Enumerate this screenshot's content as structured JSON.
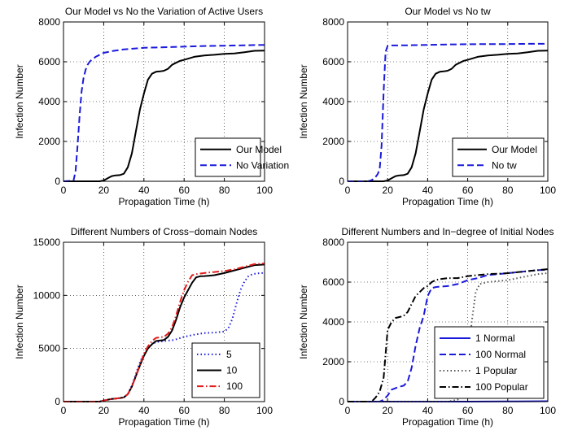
{
  "chart_data": [
    {
      "type": "line",
      "title": "Our Model vs No the Variation of Active Users",
      "xlabel": "Propagation Time (h)",
      "ylabel": "Infection Number",
      "xlim": [
        0,
        100
      ],
      "ylim": [
        0,
        8000
      ],
      "xticks": [
        0,
        20,
        40,
        60,
        80,
        100
      ],
      "yticks": [
        0,
        2000,
        4000,
        6000,
        8000
      ],
      "xtick_labels": [
        "0",
        "20",
        "40",
        "60",
        "80",
        "100"
      ],
      "ytick_labels": [
        "0",
        "2000",
        "4000",
        "6000",
        "8000"
      ],
      "grid": true,
      "legend_position": "bottom-right",
      "series": [
        {
          "name": "Our Model",
          "color": "#000000",
          "style": "solid",
          "x": [
            0,
            18,
            20,
            22,
            24,
            26,
            28,
            30,
            32,
            34,
            36,
            38,
            40,
            42,
            44,
            46,
            48,
            50,
            52,
            54,
            56,
            58,
            60,
            65,
            70,
            75,
            80,
            85,
            90,
            95,
            100
          ],
          "y": [
            0,
            0,
            40,
            150,
            260,
            300,
            310,
            380,
            700,
            1400,
            2500,
            3600,
            4400,
            5100,
            5400,
            5500,
            5520,
            5550,
            5650,
            5850,
            5950,
            6050,
            6100,
            6250,
            6320,
            6350,
            6400,
            6420,
            6480,
            6550,
            6560
          ]
        },
        {
          "name": "No Variation",
          "color": "#1a1adb",
          "style": "dashed",
          "x": [
            0,
            5,
            6,
            7,
            8,
            9,
            10,
            11,
            12,
            13,
            14,
            16,
            18,
            20,
            25,
            30,
            40,
            50,
            60,
            70,
            80,
            90,
            100
          ],
          "y": [
            0,
            30,
            500,
            1800,
            3300,
            4500,
            5200,
            5600,
            5850,
            6000,
            6100,
            6250,
            6350,
            6450,
            6550,
            6620,
            6700,
            6730,
            6760,
            6790,
            6810,
            6830,
            6850
          ]
        }
      ]
    },
    {
      "type": "line",
      "title": "Our Model vs No tw",
      "xlabel": "Propagation Time (h)",
      "ylabel": "Infection Number",
      "xlim": [
        0,
        100
      ],
      "ylim": [
        0,
        8000
      ],
      "xticks": [
        0,
        20,
        40,
        60,
        80,
        100
      ],
      "yticks": [
        0,
        2000,
        4000,
        6000,
        8000
      ],
      "xtick_labels": [
        "0",
        "20",
        "40",
        "60",
        "80",
        "100"
      ],
      "ytick_labels": [
        "0",
        "2000",
        "4000",
        "6000",
        "8000"
      ],
      "grid": true,
      "legend_position": "bottom-right",
      "series": [
        {
          "name": "Our Model",
          "color": "#000000",
          "style": "solid",
          "x": [
            0,
            18,
            20,
            22,
            24,
            26,
            28,
            30,
            32,
            34,
            36,
            38,
            40,
            42,
            44,
            46,
            48,
            50,
            52,
            54,
            56,
            58,
            60,
            65,
            70,
            75,
            80,
            85,
            90,
            95,
            100
          ],
          "y": [
            0,
            0,
            40,
            150,
            260,
            300,
            310,
            380,
            700,
            1400,
            2500,
            3600,
            4400,
            5100,
            5400,
            5500,
            5520,
            5550,
            5650,
            5850,
            5950,
            6050,
            6100,
            6250,
            6320,
            6350,
            6400,
            6420,
            6480,
            6550,
            6560
          ]
        },
        {
          "name": "No tw",
          "color": "#1a1adb",
          "style": "dashed",
          "x": [
            0,
            10,
            11,
            12,
            13,
            14,
            15,
            16,
            17,
            18,
            19,
            20,
            22,
            30,
            40,
            50,
            60,
            70,
            80,
            90,
            100
          ],
          "y": [
            0,
            0,
            20,
            60,
            120,
            220,
            350,
            600,
            1800,
            4500,
            6500,
            6800,
            6820,
            6830,
            6850,
            6870,
            6880,
            6890,
            6890,
            6900,
            6900
          ]
        }
      ]
    },
    {
      "type": "line",
      "title": "Different Numbers of Cross−domain Nodes",
      "xlabel": "Propagation Time (h)",
      "ylabel": "Infection Number",
      "xlim": [
        0,
        100
      ],
      "ylim": [
        0,
        15000
      ],
      "xticks": [
        0,
        20,
        40,
        60,
        80,
        100
      ],
      "yticks": [
        0,
        5000,
        10000,
        15000
      ],
      "xtick_labels": [
        "0",
        "20",
        "40",
        "60",
        "80",
        "100"
      ],
      "ytick_labels": [
        "0",
        "5000",
        "10000",
        "15000"
      ],
      "grid": true,
      "legend_position": "bottom-right",
      "series": [
        {
          "name": "5",
          "color": "#1a1adb",
          "style": "dotted",
          "x": [
            0,
            18,
            20,
            24,
            28,
            30,
            32,
            34,
            36,
            38,
            40,
            42,
            44,
            46,
            48,
            50,
            55,
            60,
            65,
            70,
            75,
            80,
            82,
            84,
            86,
            88,
            90,
            92,
            94,
            96,
            98,
            100
          ],
          "y": [
            0,
            0,
            100,
            250,
            330,
            400,
            700,
            1500,
            2600,
            3700,
            4500,
            5000,
            5400,
            5600,
            5650,
            5700,
            5800,
            6100,
            6300,
            6450,
            6500,
            6600,
            6900,
            7800,
            9200,
            10500,
            11300,
            11800,
            12000,
            12050,
            12100,
            12100
          ]
        },
        {
          "name": "10",
          "color": "#000000",
          "style": "solid",
          "x": [
            0,
            18,
            20,
            24,
            28,
            30,
            32,
            34,
            36,
            38,
            40,
            42,
            44,
            46,
            48,
            50,
            52,
            54,
            56,
            58,
            60,
            62,
            64,
            66,
            68,
            70,
            72,
            75,
            80,
            85,
            90,
            95,
            100
          ],
          "y": [
            0,
            0,
            100,
            250,
            330,
            400,
            700,
            1400,
            2400,
            3400,
            4300,
            5000,
            5400,
            5700,
            5750,
            5800,
            6100,
            6700,
            7700,
            8900,
            9800,
            10500,
            11200,
            11700,
            11800,
            11820,
            11850,
            11900,
            12100,
            12350,
            12600,
            12850,
            12900
          ]
        },
        {
          "name": "100",
          "color": "#e21b1b",
          "style": "dashdot",
          "x": [
            0,
            18,
            20,
            24,
            28,
            30,
            32,
            34,
            36,
            38,
            40,
            42,
            44,
            46,
            48,
            50,
            52,
            54,
            56,
            58,
            60,
            62,
            64,
            66,
            68,
            70,
            72,
            75,
            80,
            85,
            90,
            95,
            100
          ],
          "y": [
            0,
            0,
            100,
            250,
            330,
            400,
            700,
            1400,
            2400,
            3500,
            4500,
            5200,
            5700,
            6000,
            6050,
            6100,
            6400,
            7000,
            8100,
            9400,
            10500,
            11300,
            11900,
            12000,
            12050,
            12100,
            12150,
            12200,
            12300,
            12450,
            12700,
            12950,
            13000
          ]
        }
      ]
    },
    {
      "type": "line",
      "title": "Different Numbers and In−degree of Initial Nodes",
      "xlabel": "Propagation Time (h)",
      "ylabel": "Infection Number",
      "xlim": [
        0,
        100
      ],
      "ylim": [
        0,
        8000
      ],
      "xticks": [
        0,
        20,
        40,
        60,
        80,
        100
      ],
      "yticks": [
        0,
        2000,
        4000,
        6000,
        8000
      ],
      "xtick_labels": [
        "0",
        "20",
        "40",
        "60",
        "80",
        "100"
      ],
      "ytick_labels": [
        "0",
        "2000",
        "4000",
        "6000",
        "8000"
      ],
      "grid": true,
      "legend_position": "bottom-right",
      "series": [
        {
          "name": "1 Normal",
          "color": "#1a1adb",
          "style": "solid",
          "x": [
            0,
            20,
            40,
            60,
            80,
            100
          ],
          "y": [
            0,
            0,
            0,
            0,
            10,
            20
          ]
        },
        {
          "name": "100 Normal",
          "color": "#1a1adb",
          "style": "dashed",
          "x": [
            0,
            16,
            18,
            20,
            22,
            26,
            28,
            30,
            32,
            34,
            36,
            38,
            40,
            42,
            44,
            46,
            50,
            55,
            60,
            65,
            70,
            75,
            80,
            85,
            90,
            95,
            100
          ],
          "y": [
            0,
            0,
            100,
            300,
            600,
            750,
            800,
            1000,
            1700,
            2800,
            3700,
            4300,
            5300,
            5700,
            5750,
            5770,
            5800,
            5900,
            6100,
            6200,
            6350,
            6400,
            6450,
            6500,
            6550,
            6600,
            6620
          ]
        },
        {
          "name": "1 Popular",
          "color": "#555555",
          "style": "dotted",
          "x": [
            0,
            50,
            55,
            58,
            60,
            62,
            64,
            66,
            70,
            75,
            80,
            85,
            90,
            95,
            100
          ],
          "y": [
            0,
            0,
            100,
            400,
            1500,
            4000,
            5500,
            5900,
            6000,
            6050,
            6100,
            6200,
            6300,
            6400,
            6450
          ]
        },
        {
          "name": "100 Popular",
          "color": "#000000",
          "style": "dashdot",
          "x": [
            0,
            12,
            14,
            16,
            18,
            20,
            22,
            24,
            26,
            28,
            30,
            32,
            34,
            36,
            38,
            40,
            42,
            44,
            46,
            48,
            50,
            55,
            60,
            65,
            70,
            75,
            80,
            85,
            90,
            95,
            100
          ],
          "y": [
            0,
            0,
            200,
            500,
            1200,
            3600,
            4000,
            4200,
            4250,
            4300,
            4500,
            4900,
            5300,
            5500,
            5700,
            5800,
            6000,
            6100,
            6150,
            6170,
            6200,
            6200,
            6300,
            6350,
            6400,
            6420,
            6450,
            6500,
            6550,
            6600,
            6650
          ]
        }
      ]
    }
  ]
}
